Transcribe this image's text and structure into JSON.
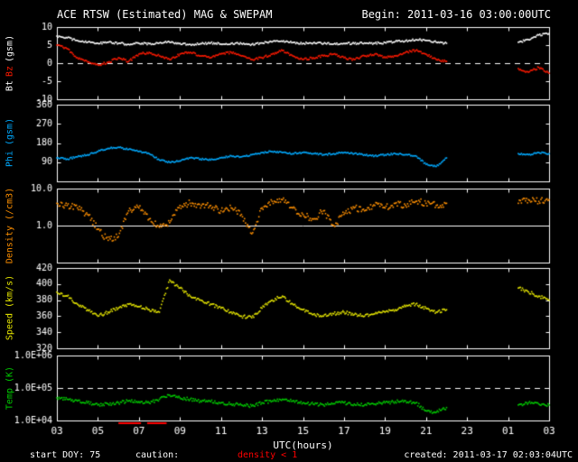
{
  "header": {
    "title": "ACE RTSW (Estimated) MAG & SWEPAM",
    "begin": "Begin: 2011-03-16 03:00:00UTC"
  },
  "footer": {
    "start_doy": "start DOY: 75",
    "caution_label": "caution:",
    "caution_value": "density < 1",
    "created": "created: 2011-03-17 02:03:04UTC"
  },
  "colors": {
    "background": "#000000",
    "frame": "#ffffff",
    "text": "#ffffff",
    "bt": "#ffffff",
    "bz": "#ff1a00",
    "phi": "#00aaff",
    "density": "#ff9000",
    "speed": "#e8e800",
    "temp": "#00cc00",
    "caution": "#ff0000"
  },
  "chart_data": {
    "type": "scatter",
    "title": "ACE RTSW (Estimated) MAG & SWEPAM",
    "begin": "2011-03-16 03:00:00UTC",
    "xlabel": "UTC(hours)",
    "x": {
      "range": [
        3,
        27
      ],
      "hours": [
        3,
        3.5,
        4,
        4.5,
        5,
        5.5,
        6,
        6.5,
        7,
        7.5,
        8,
        8.5,
        9,
        9.5,
        10,
        10.5,
        11,
        11.5,
        12,
        12.5,
        13,
        13.5,
        14,
        14.5,
        15,
        15.5,
        16,
        16.5,
        17,
        17.5,
        18,
        18.5,
        19,
        19.5,
        20,
        20.5,
        21,
        21.5,
        22,
        25.5,
        26,
        26.5,
        27
      ],
      "ticks": [
        3,
        5,
        7,
        9,
        11,
        13,
        15,
        17,
        19,
        21,
        23,
        25,
        27
      ],
      "tick_labels": [
        "03",
        "05",
        "07",
        "09",
        "11",
        "13",
        "15",
        "17",
        "19",
        "21",
        "23",
        "01",
        "03"
      ]
    },
    "caution_intervals": [
      [
        6.0,
        7.1
      ],
      [
        7.4,
        8.35
      ]
    ],
    "panels": [
      {
        "name": "mag",
        "ylabel": {
          "bt": "Bt",
          "bz": "Bz",
          "unit": "(gsm)"
        },
        "ylim": [
          -10,
          10
        ],
        "log": false,
        "yticks": [
          10,
          5,
          0,
          -5,
          -10
        ],
        "ytick_labels": [
          "10",
          "5",
          "0",
          "-5",
          "-10"
        ],
        "ref_lines": [
          {
            "value": 0,
            "style": "dashed"
          }
        ],
        "series": [
          {
            "name": "Bt",
            "color": "bt",
            "values": [
              7.5,
              7.0,
              6.3,
              5.8,
              5.5,
              5.8,
              5.5,
              5.2,
              5.5,
              5.4,
              5.6,
              5.8,
              5.5,
              5.2,
              5.4,
              5.6,
              5.3,
              5.5,
              5.4,
              5.2,
              5.6,
              5.9,
              6.0,
              5.7,
              5.5,
              5.6,
              5.4,
              5.3,
              5.5,
              5.4,
              5.6,
              5.5,
              5.7,
              6.0,
              6.2,
              6.5,
              6.3,
              5.8,
              5.5,
              5.8,
              6.5,
              7.8,
              8.2
            ]
          },
          {
            "name": "Bz",
            "color": "bz",
            "values": [
              5.0,
              4.0,
              1.5,
              0.3,
              -0.5,
              0.2,
              1.5,
              0.5,
              2.5,
              3.0,
              2.0,
              1.0,
              2.5,
              3.0,
              2.0,
              1.5,
              2.5,
              3.0,
              2.0,
              1.0,
              1.5,
              2.5,
              3.5,
              2.0,
              1.0,
              1.5,
              2.0,
              2.5,
              1.5,
              1.0,
              2.0,
              2.5,
              1.5,
              2.0,
              3.0,
              3.5,
              2.5,
              1.0,
              0.5,
              -1.5,
              -2.5,
              -1.2,
              -2.8
            ]
          }
        ]
      },
      {
        "name": "phi",
        "ylabel_text": "Phi (gsm)",
        "ylim": [
          0,
          360
        ],
        "log": false,
        "yticks": [
          360,
          270,
          180,
          90
        ],
        "ytick_labels": [
          "360",
          "270",
          "180",
          "90"
        ],
        "ref_lines": [],
        "series": [
          {
            "name": "Phi",
            "color": "phi",
            "values": [
              110,
              105,
              115,
              125,
              140,
              155,
              160,
              150,
              140,
              130,
              100,
              90,
              95,
              110,
              105,
              100,
              110,
              120,
              115,
              125,
              135,
              140,
              135,
              130,
              135,
              130,
              125,
              130,
              135,
              130,
              125,
              120,
              125,
              130,
              125,
              120,
              80,
              70,
              110,
              130,
              125,
              135,
              130
            ]
          }
        ]
      },
      {
        "name": "density",
        "ylabel_text": "Density (/cm3)",
        "ylim": [
          0.1,
          10
        ],
        "log": true,
        "yticks": [
          10,
          1
        ],
        "ytick_labels": [
          "10.0",
          "1.0"
        ],
        "ref_lines": [
          {
            "value": 1,
            "style": "solid"
          }
        ],
        "series": [
          {
            "name": "Density",
            "color": "density",
            "values": [
              4.0,
              3.5,
              3.0,
              2.0,
              0.8,
              0.4,
              0.5,
              2.5,
              3.0,
              1.5,
              0.9,
              1.2,
              3.5,
              4.0,
              3.0,
              3.5,
              2.5,
              3.0,
              2.0,
              0.6,
              3.0,
              4.5,
              5.0,
              3.0,
              2.0,
              1.5,
              2.5,
              1.0,
              2.0,
              3.0,
              2.5,
              3.5,
              3.0,
              4.0,
              3.5,
              4.5,
              4.0,
              3.5,
              4.0,
              4.0,
              5.0,
              4.5,
              5.0
            ]
          }
        ]
      },
      {
        "name": "speed",
        "ylabel_text": "Speed (km/s)",
        "ylim": [
          320,
          420
        ],
        "log": false,
        "yticks": [
          420,
          400,
          380,
          360,
          340,
          320
        ],
        "ytick_labels": [
          "420",
          "400",
          "380",
          "360",
          "340",
          "320"
        ],
        "ref_lines": [],
        "series": [
          {
            "name": "Speed",
            "color": "speed",
            "values": [
              390,
              385,
              375,
              368,
              360,
              365,
              370,
              375,
              372,
              368,
              365,
              405,
              395,
              385,
              380,
              375,
              370,
              365,
              360,
              358,
              370,
              380,
              385,
              375,
              368,
              362,
              360,
              363,
              365,
              362,
              360,
              363,
              365,
              368,
              372,
              375,
              370,
              365,
              368,
              395,
              390,
              385,
              380
            ]
          }
        ]
      },
      {
        "name": "temp",
        "ylabel_text": "Temp (K)",
        "ylim": [
          10000,
          1000000
        ],
        "log": true,
        "yticks": [
          1000000,
          100000,
          10000
        ],
        "ytick_labels": [
          "1.0E+06",
          "1.0E+05",
          "1.0E+04"
        ],
        "ref_lines": [
          {
            "value": 100000,
            "style": "dashed"
          }
        ],
        "series": [
          {
            "name": "Temp",
            "color": "temp",
            "values": [
              50000,
              45000,
              40000,
              35000,
              30000,
              32000,
              35000,
              40000,
              38000,
              35000,
              45000,
              60000,
              50000,
              45000,
              40000,
              38000,
              35000,
              32000,
              30000,
              28000,
              35000,
              40000,
              45000,
              40000,
              35000,
              32000,
              30000,
              33000,
              35000,
              32000,
              30000,
              32000,
              35000,
              38000,
              40000,
              35000,
              20000,
              18000,
              25000,
              30000,
              35000,
              32000,
              30000
            ]
          }
        ]
      }
    ]
  }
}
